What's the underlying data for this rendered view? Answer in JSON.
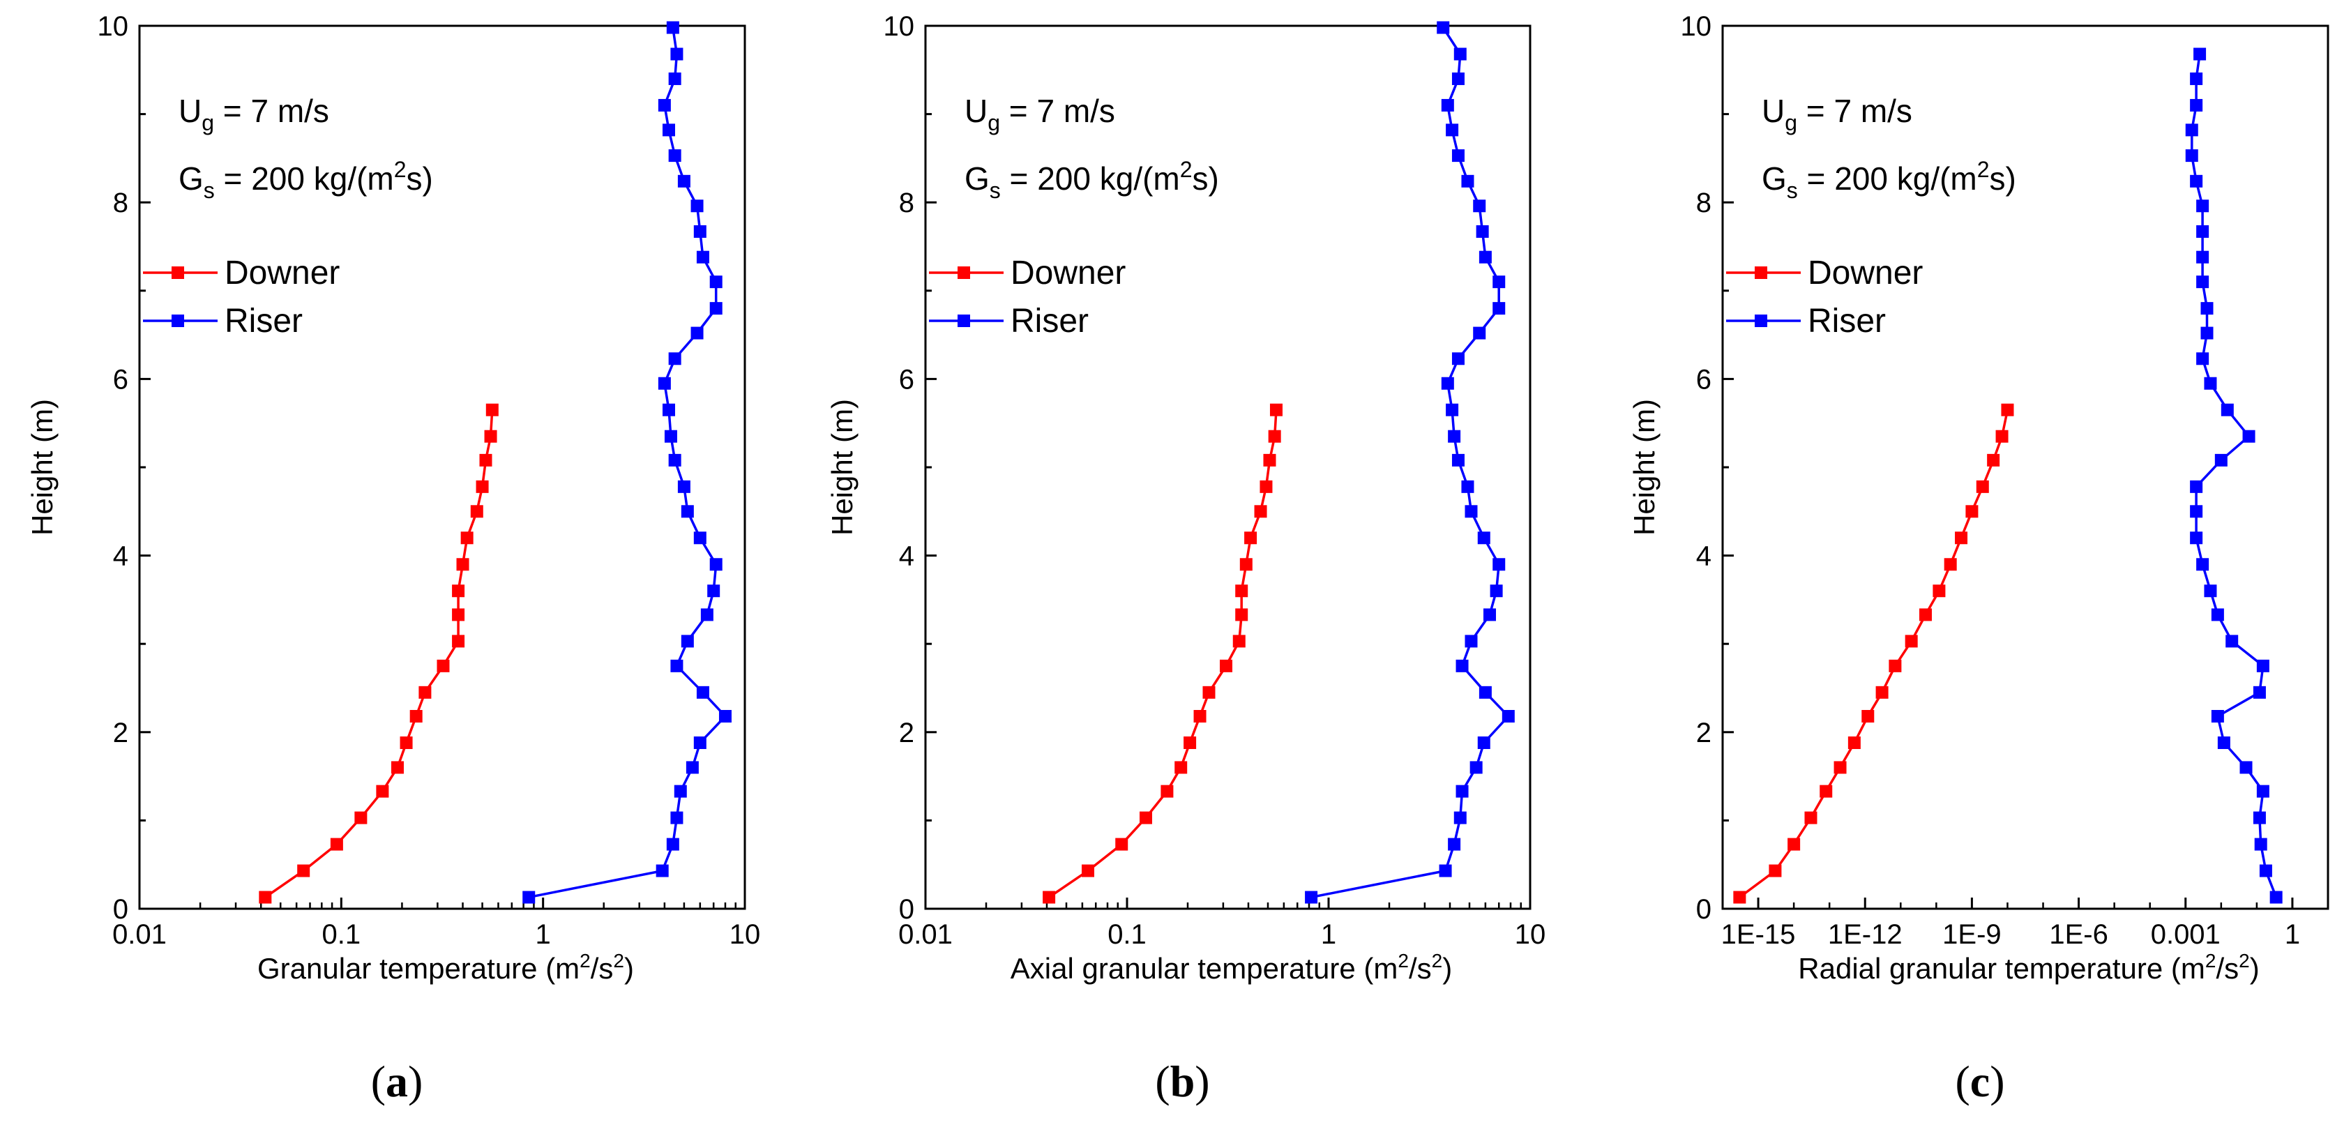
{
  "chart_data": [
    {
      "type": "line",
      "panel_label": "(a)",
      "panel_letter": "a",
      "xlabel_main": "Granular temperature (m",
      "xlabel_mid": "/s",
      "xlabel_end": ")",
      "ylabel": "Height  (m)",
      "xscale": "log",
      "xlim": [
        0.01,
        10
      ],
      "ylim": [
        0,
        10
      ],
      "xticks": [
        0.01,
        0.1,
        1,
        10
      ],
      "xtick_labels": [
        "0.01",
        "0.1",
        "1",
        "10"
      ],
      "yticks": [
        0,
        2,
        4,
        6,
        8,
        10
      ],
      "ytick_labels": [
        "0",
        "2",
        "4",
        "6",
        "8",
        "10"
      ],
      "annotation": {
        "ug_prefix": "U",
        "ug_sub": "g",
        "ug_value": " = 7 m/s",
        "gs_prefix": "G",
        "gs_sub": "s",
        "gs_value": " = 200 kg/(m",
        "gs_sup": "2",
        "gs_end": "s)"
      },
      "legend_position": "upper-left",
      "series": [
        {
          "name": "Downer",
          "color": "#ff0000",
          "y": [
            0.13,
            0.43,
            0.73,
            1.03,
            1.33,
            1.6,
            1.88,
            2.18,
            2.45,
            2.75,
            3.03,
            3.33,
            3.6,
            3.9,
            4.2,
            4.5,
            4.78,
            5.08,
            5.35,
            5.65
          ],
          "x": [
            0.042,
            0.065,
            0.095,
            0.125,
            0.16,
            0.19,
            0.21,
            0.235,
            0.26,
            0.32,
            0.38,
            0.38,
            0.38,
            0.4,
            0.42,
            0.47,
            0.5,
            0.52,
            0.55,
            0.56
          ]
        },
        {
          "name": "Riser",
          "color": "#0000ff",
          "y": [
            0.13,
            0.43,
            0.73,
            1.03,
            1.33,
            1.6,
            1.88,
            2.18,
            2.45,
            2.75,
            3.03,
            3.33,
            3.6,
            3.9,
            4.2,
            4.5,
            4.78,
            5.08,
            5.35,
            5.65,
            5.95,
            6.23,
            6.52,
            6.8,
            7.1,
            7.38,
            7.67,
            7.96,
            8.24,
            8.53,
            8.82,
            9.1,
            9.4,
            9.68,
            9.98
          ],
          "x": [
            0.85,
            3.9,
            4.4,
            4.6,
            4.8,
            5.5,
            6.0,
            8.0,
            6.2,
            4.6,
            5.2,
            6.5,
            7.0,
            7.2,
            6.0,
            5.2,
            5.0,
            4.5,
            4.3,
            4.2,
            4.0,
            4.5,
            5.8,
            7.2,
            7.2,
            6.2,
            6.0,
            5.8,
            5.0,
            4.5,
            4.2,
            4.0,
            4.5,
            4.6,
            4.4
          ]
        }
      ]
    },
    {
      "type": "line",
      "panel_label": "(b)",
      "panel_letter": "b",
      "xlabel_main": "Axial granular temperature (m",
      "xlabel_mid": "/s",
      "xlabel_end": ")",
      "ylabel": "Height  (m)",
      "xscale": "log",
      "xlim": [
        0.01,
        10
      ],
      "ylim": [
        0,
        10
      ],
      "xticks": [
        0.01,
        0.1,
        1,
        10
      ],
      "xtick_labels": [
        "0.01",
        "0.1",
        "1",
        "10"
      ],
      "yticks": [
        0,
        2,
        4,
        6,
        8,
        10
      ],
      "ytick_labels": [
        "0",
        "2",
        "4",
        "6",
        "8",
        "10"
      ],
      "annotation": {
        "ug_prefix": "U",
        "ug_sub": "g",
        "ug_value": " = 7 m/s",
        "gs_prefix": "G",
        "gs_sub": "s",
        "gs_value": " = 200 kg/(m",
        "gs_sup": "2",
        "gs_end": "s)"
      },
      "legend_position": "upper-left",
      "series": [
        {
          "name": "Downer",
          "color": "#ff0000",
          "y": [
            0.13,
            0.43,
            0.73,
            1.03,
            1.33,
            1.6,
            1.88,
            2.18,
            2.45,
            2.75,
            3.03,
            3.33,
            3.6,
            3.9,
            4.2,
            4.5,
            4.78,
            5.08,
            5.35,
            5.65
          ],
          "x": [
            0.041,
            0.064,
            0.094,
            0.124,
            0.158,
            0.185,
            0.205,
            0.23,
            0.255,
            0.31,
            0.36,
            0.37,
            0.37,
            0.39,
            0.41,
            0.46,
            0.49,
            0.51,
            0.54,
            0.55
          ]
        },
        {
          "name": "Riser",
          "color": "#0000ff",
          "y": [
            0.13,
            0.43,
            0.73,
            1.03,
            1.33,
            1.6,
            1.88,
            2.18,
            2.45,
            2.75,
            3.03,
            3.33,
            3.6,
            3.9,
            4.2,
            4.5,
            4.78,
            5.08,
            5.35,
            5.65,
            5.95,
            6.23,
            6.52,
            6.8,
            7.1,
            7.38,
            7.67,
            7.96,
            8.24,
            8.53,
            8.82,
            9.1,
            9.4,
            9.68,
            9.98
          ],
          "x": [
            0.82,
            3.8,
            4.2,
            4.5,
            4.6,
            5.4,
            5.9,
            7.8,
            6.0,
            4.6,
            5.1,
            6.3,
            6.8,
            7.0,
            5.9,
            5.1,
            4.9,
            4.4,
            4.2,
            4.1,
            3.9,
            4.4,
            5.6,
            7.0,
            7.0,
            6.0,
            5.8,
            5.6,
            4.9,
            4.4,
            4.1,
            3.9,
            4.4,
            4.5,
            3.7
          ]
        }
      ]
    },
    {
      "type": "line",
      "panel_label": "(c)",
      "panel_letter": "c",
      "xlabel_main": "Radial granular temperature (m",
      "xlabel_mid": "/s",
      "xlabel_end": ")",
      "ylabel": "Height  (m)",
      "xscale": "log",
      "xlim": [
        1e-16,
        10
      ],
      "ylim": [
        0,
        10
      ],
      "xticks": [
        1e-15,
        1e-12,
        1e-09,
        1e-06,
        0.001,
        1
      ],
      "xtick_labels": [
        "1E-15",
        "1E-12",
        "1E-9",
        "1E-6",
        "0.001",
        "1"
      ],
      "yticks": [
        0,
        2,
        4,
        6,
        8,
        10
      ],
      "ytick_labels": [
        "0",
        "2",
        "4",
        "6",
        "8",
        "10"
      ],
      "annotation": {
        "ug_prefix": "U",
        "ug_sub": "g",
        "ug_value": " = 7 m/s",
        "gs_prefix": "G",
        "gs_sub": "s",
        "gs_value": " = 200 kg/(m",
        "gs_sup": "2",
        "gs_end": "s)"
      },
      "legend_position": "upper-left",
      "series": [
        {
          "name": "Downer",
          "color": "#ff0000",
          "y": [
            0.13,
            0.43,
            0.73,
            1.03,
            1.33,
            1.6,
            1.88,
            2.18,
            2.45,
            2.75,
            3.03,
            3.33,
            3.6,
            3.9,
            4.2,
            4.5,
            4.78,
            5.08,
            5.35,
            5.65
          ],
          "x": [
            3e-16,
            3e-15,
            1e-14,
            3e-14,
            8e-14,
            2e-13,
            5e-13,
            1.2e-12,
            3e-12,
            7e-12,
            2e-11,
            5e-11,
            1.2e-10,
            2.5e-10,
            5e-10,
            1e-09,
            2e-09,
            4e-09,
            7e-09,
            1e-08
          ]
        },
        {
          "name": "Riser",
          "color": "#0000ff",
          "y": [
            0.13,
            0.43,
            0.73,
            1.03,
            1.33,
            1.6,
            1.88,
            2.18,
            2.45,
            2.75,
            3.03,
            3.33,
            3.6,
            3.9,
            4.2,
            4.5,
            4.78,
            5.08,
            5.35,
            5.65,
            5.95,
            6.23,
            6.52,
            6.8,
            7.1,
            7.38,
            7.67,
            7.96,
            8.24,
            8.53,
            8.82,
            9.1,
            9.4,
            9.68
          ],
          "x": [
            0.35,
            0.18,
            0.13,
            0.12,
            0.15,
            0.05,
            0.012,
            0.008,
            0.12,
            0.15,
            0.02,
            0.008,
            0.005,
            0.003,
            0.002,
            0.002,
            0.002,
            0.01,
            0.06,
            0.015,
            0.005,
            0.003,
            0.004,
            0.004,
            0.003,
            0.003,
            0.003,
            0.003,
            0.002,
            0.0015,
            0.0015,
            0.002,
            0.002,
            0.0025
          ]
        }
      ]
    }
  ]
}
